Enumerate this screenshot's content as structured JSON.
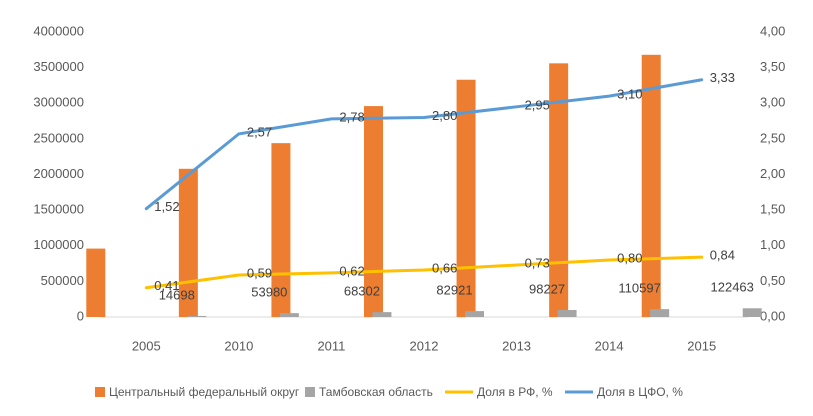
{
  "chart_data": {
    "type": "bar",
    "categories": [
      "2005",
      "2010",
      "2011",
      "2012",
      "2013",
      "2014",
      "2015"
    ],
    "series": [
      {
        "name": "Центральный федеральный округ",
        "type": "bar",
        "color": "#ed7d31",
        "values": [
          960000,
          2080000,
          2440000,
          2960000,
          3330000,
          3560000,
          3680000
        ]
      },
      {
        "name": "Тамбовская область",
        "type": "bar",
        "color": "#a5a5a5",
        "values": [
          14698,
          53980,
          68302,
          82921,
          98227,
          110597,
          122463
        ],
        "data_labels": true
      },
      {
        "name": "Доля в РФ, %",
        "type": "line",
        "axis": "y2",
        "color": "#ffc000",
        "values": [
          0.41,
          0.59,
          0.62,
          0.66,
          0.73,
          0.8,
          0.84
        ],
        "value_labels": [
          "0,41",
          "0,59",
          "0,62",
          "0,66",
          "0,73",
          "0,80",
          "0,84"
        ]
      },
      {
        "name": "Доля в ЦФО, %",
        "type": "line",
        "axis": "y2",
        "color": "#5b9bd5",
        "values": [
          1.52,
          2.57,
          2.78,
          2.8,
          2.95,
          3.1,
          3.33
        ],
        "value_labels": [
          "1,52",
          "2,57",
          "2,78",
          "2,80",
          "2,95",
          "3,10",
          "3,33"
        ]
      }
    ],
    "ylim": [
      0,
      4000000
    ],
    "yticks": [
      0,
      500000,
      1000000,
      1500000,
      2000000,
      2500000,
      3000000,
      3500000,
      4000000
    ],
    "y2lim": [
      0,
      4
    ],
    "y2ticks": [
      {
        "value": 0,
        "label": "0,00"
      },
      {
        "value": 0.5,
        "label": "0,50"
      },
      {
        "value": 1,
        "label": "1,00"
      },
      {
        "value": 1.5,
        "label": "1,50"
      },
      {
        "value": 2,
        "label": "2,00"
      },
      {
        "value": 2.5,
        "label": "2,50"
      },
      {
        "value": 3,
        "label": "3,00"
      },
      {
        "value": 3.5,
        "label": "3,50"
      },
      {
        "value": 4,
        "label": "4,00"
      }
    ],
    "legend": "bottom"
  }
}
